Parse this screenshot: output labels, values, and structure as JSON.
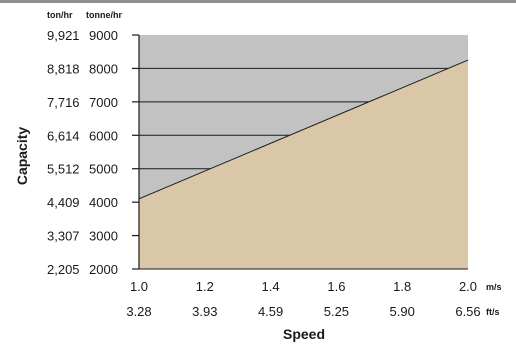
{
  "chart_data": {
    "type": "area",
    "xlabel": "Speed",
    "ylabel": "Capacity",
    "x_unit_primary": "m/s",
    "x_unit_secondary": "ft/s",
    "y_unit_primary": "tonne/hr",
    "y_unit_secondary": "ton/hr",
    "xlim": [
      1.0,
      2.0
    ],
    "ylim": [
      2000,
      9000
    ],
    "x_ticks": [
      {
        "value": 1.0,
        "label": "1.0",
        "secondary": "3.28"
      },
      {
        "value": 1.2,
        "label": "1.2",
        "secondary": "3.93"
      },
      {
        "value": 1.4,
        "label": "1.4",
        "secondary": "4.59"
      },
      {
        "value": 1.6,
        "label": "1.6",
        "secondary": "5.25"
      },
      {
        "value": 1.8,
        "label": "1.8",
        "secondary": "5.90"
      },
      {
        "value": 2.0,
        "label": "2.0",
        "secondary": "6.56"
      }
    ],
    "y_ticks": [
      {
        "value": 9000,
        "label": "9000",
        "secondary": "9,921"
      },
      {
        "value": 8000,
        "label": "8000",
        "secondary": "8,818"
      },
      {
        "value": 7000,
        "label": "7000",
        "secondary": "7,716"
      },
      {
        "value": 6000,
        "label": "6000",
        "secondary": "6,614"
      },
      {
        "value": 5000,
        "label": "5000",
        "secondary": "5,512"
      },
      {
        "value": 4000,
        "label": "4000",
        "secondary": "4,409"
      },
      {
        "value": 3000,
        "label": "3000",
        "secondary": "3,307"
      },
      {
        "value": 2000,
        "label": "2000",
        "secondary": "2,205"
      }
    ],
    "grid_lines_at": [
      4000,
      5000,
      6000,
      7000,
      8000
    ],
    "series": [
      {
        "x": [
          1.0,
          2.0
        ],
        "y": [
          4100,
          8250
        ]
      }
    ],
    "colors": {
      "area": "#d9c7a8",
      "background": "#c2c2c2",
      "line": "#1a1a1a"
    }
  }
}
